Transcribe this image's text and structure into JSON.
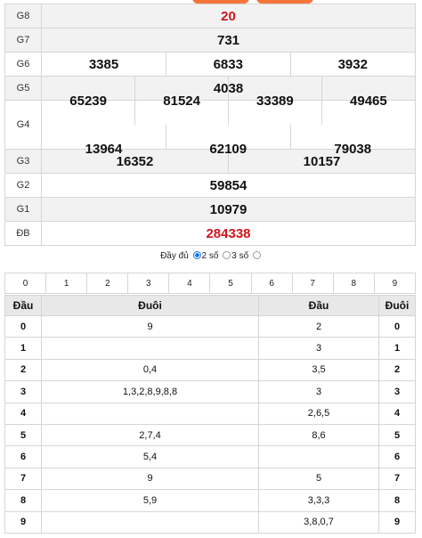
{
  "prizes": [
    {
      "label": "G8",
      "numbers": [
        "20"
      ],
      "red": true
    },
    {
      "label": "G7",
      "numbers": [
        "731"
      ]
    },
    {
      "label": "G6",
      "numbers": [
        "3385",
        "6833",
        "3932"
      ]
    },
    {
      "label": "G5",
      "numbers": [
        "4038"
      ]
    },
    {
      "label": "G4",
      "numbers": [
        "65239",
        "81524",
        "33389",
        "49465",
        "13964",
        "62109",
        "79038"
      ]
    },
    {
      "label": "G3",
      "numbers": [
        "16352",
        "10157"
      ]
    },
    {
      "label": "G2",
      "numbers": [
        "59854"
      ]
    },
    {
      "label": "G1",
      "numbers": [
        "10979"
      ]
    },
    {
      "label": "ĐB",
      "numbers": [
        "284338"
      ],
      "red": true
    }
  ],
  "options": {
    "full": "Đầy đủ",
    "two": "2 số",
    "three": "3 số",
    "selected": "two"
  },
  "digits": [
    "0",
    "1",
    "2",
    "3",
    "4",
    "5",
    "6",
    "7",
    "8",
    "9"
  ],
  "loto": {
    "headers": [
      "Đầu",
      "Đuôi",
      "Đầu",
      "Đuôi"
    ],
    "rows": [
      {
        "dau": "0",
        "duoi": "9",
        "dau2": "2",
        "duoi2": "0"
      },
      {
        "dau": "1",
        "duoi": "",
        "dau2": "3",
        "duoi2": "1"
      },
      {
        "dau": "2",
        "duoi": "0,4",
        "dau2": "3,5",
        "duoi2": "2"
      },
      {
        "dau": "3",
        "duoi": "1,3,2,8,9,8,8",
        "dau2": "3",
        "duoi2": "3"
      },
      {
        "dau": "4",
        "duoi": "",
        "dau2": "2,6,5",
        "duoi2": "4"
      },
      {
        "dau": "5",
        "duoi": "2,7,4",
        "dau2": "8,6",
        "duoi2": "5"
      },
      {
        "dau": "6",
        "duoi": "5,4",
        "dau2": "",
        "duoi2": "6"
      },
      {
        "dau": "7",
        "duoi": "9",
        "dau2": "5",
        "duoi2": "7"
      },
      {
        "dau": "8",
        "duoi": "5,9",
        "dau2": "3,3,3",
        "duoi2": "8"
      },
      {
        "dau": "9",
        "duoi": "",
        "dau2": "3,8,0,7",
        "duoi2": "9"
      }
    ]
  },
  "colors": {
    "accent": "#f4763b",
    "red": "#d0141d",
    "radio": "#1a73e8"
  }
}
